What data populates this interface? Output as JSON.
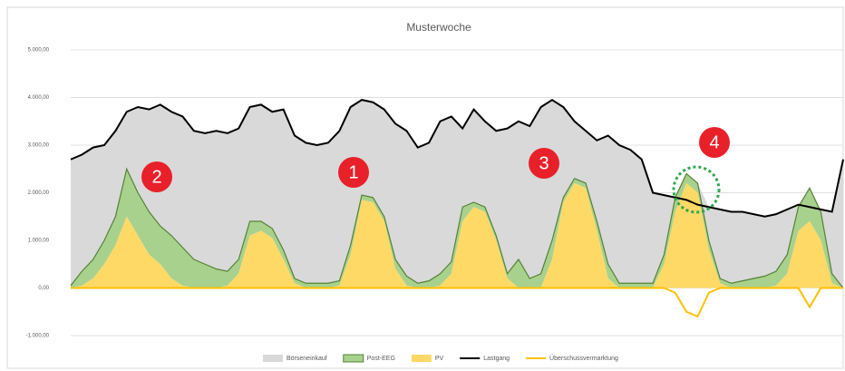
{
  "chart_data": {
    "type": "stacked-area-line",
    "title": "Musterwoche",
    "ylim": [
      -1000,
      5000
    ],
    "yticks": [
      {
        "value": -1000,
        "label": "-1.000,00"
      },
      {
        "value": 0,
        "label": "0,00"
      },
      {
        "value": 1000,
        "label": "1.000,00"
      },
      {
        "value": 2000,
        "label": "2.000,00"
      },
      {
        "value": 3000,
        "label": "3.000,00"
      },
      {
        "value": 4000,
        "label": "4.000,00"
      },
      {
        "value": 5000,
        "label": "5.000,00"
      }
    ],
    "grid": true,
    "legend": "bottom",
    "series": [
      {
        "name": "Börseneinkauf",
        "kind": "area",
        "color": "#d9d9d9",
        "values": [
          2650,
          2450,
          2350,
          2000,
          1800,
          1200,
          1800,
          2150,
          2550,
          2600,
          2750,
          2700,
          2750,
          2900,
          2900,
          2750,
          2400,
          2450,
          2450,
          2950,
          3000,
          2950,
          2900,
          2950,
          3150,
          2900,
          2000,
          2000,
          2250,
          2850,
          3050,
          2850,
          2900,
          3200,
          3050,
          1650,
          1950,
          1800,
          2200,
          3050,
          2900,
          3200,
          3500,
          2950,
          1900,
          1200,
          1100,
          1700,
          2700,
          2900,
          2800,
          2600,
          1900,
          1250,
          0,
          0,
          0,
          700,
          1450,
          1500,
          1450,
          1350,
          1250,
          1200,
          950,
          50,
          0,
          50,
          1300,
          2700
        ]
      },
      {
        "name": "Post-EEG",
        "kind": "area",
        "color": "#a9d18e",
        "outline": "#548235",
        "values": [
          50,
          300,
          400,
          500,
          600,
          1000,
          900,
          900,
          800,
          900,
          800,
          600,
          500,
          400,
          300,
          300,
          300,
          200,
          200,
          200,
          100,
          100,
          100,
          100,
          100,
          200,
          100,
          100,
          100,
          200,
          200,
          100,
          150,
          250,
          250,
          300,
          100,
          100,
          100,
          100,
          600,
          200,
          300,
          400,
          100,
          100,
          100,
          200,
          300,
          100,
          100,
          100,
          100,
          200,
          300,
          200,
          200,
          200,
          100,
          100,
          150,
          200,
          250,
          300,
          400,
          500,
          700,
          600,
          200,
          0
        ]
      },
      {
        "name": "PV",
        "kind": "area",
        "color": "#ffd966",
        "values": [
          0,
          50,
          200,
          500,
          900,
          1500,
          1100,
          700,
          500,
          200,
          50,
          0,
          0,
          0,
          50,
          300,
          1100,
          1200,
          1050,
          600,
          100,
          0,
          0,
          0,
          50,
          700,
          1850,
          1800,
          1400,
          400,
          50,
          0,
          0,
          50,
          300,
          1400,
          1700,
          1600,
          1000,
          200,
          0,
          0,
          0,
          600,
          1800,
          2200,
          2100,
          1200,
          200,
          0,
          0,
          0,
          0,
          500,
          1600,
          2200,
          2000,
          800,
          100,
          0,
          0,
          0,
          0,
          50,
          300,
          1200,
          1400,
          1000,
          100,
          0
        ]
      },
      {
        "name": "Lastgang",
        "kind": "line",
        "color": "#000000",
        "values": [
          2700,
          2800,
          2950,
          3000,
          3300,
          3700,
          3800,
          3750,
          3850,
          3700,
          3600,
          3300,
          3250,
          3300,
          3250,
          3350,
          3800,
          3850,
          3700,
          3750,
          3200,
          3050,
          3000,
          3050,
          3300,
          3800,
          3950,
          3900,
          3750,
          3450,
          3300,
          2950,
          3050,
          3500,
          3600,
          3350,
          3750,
          3500,
          3300,
          3350,
          3500,
          3400,
          3800,
          3950,
          3800,
          3500,
          3300,
          3100,
          3200,
          3000,
          2900,
          2700,
          2000,
          1950,
          1900,
          1850,
          1750,
          1700,
          1650,
          1600,
          1600,
          1550,
          1500,
          1550,
          1650,
          1750,
          1700,
          1650,
          1600,
          2700
        ]
      },
      {
        "name": "Überschussvermarktung",
        "kind": "line",
        "color": "#ffc000",
        "values": [
          0,
          0,
          0,
          0,
          0,
          0,
          0,
          0,
          0,
          0,
          0,
          0,
          0,
          0,
          0,
          0,
          0,
          0,
          0,
          0,
          0,
          0,
          0,
          0,
          0,
          0,
          0,
          0,
          0,
          0,
          0,
          0,
          0,
          0,
          0,
          0,
          0,
          0,
          0,
          0,
          0,
          0,
          0,
          0,
          0,
          0,
          0,
          0,
          0,
          0,
          0,
          0,
          0,
          0,
          -100,
          -500,
          -600,
          -100,
          0,
          0,
          0,
          0,
          0,
          0,
          0,
          0,
          -400,
          0,
          0,
          0
        ]
      }
    ],
    "annotations": [
      {
        "text": "2"
      },
      {
        "text": "1"
      },
      {
        "text": "3"
      },
      {
        "text": "4"
      }
    ]
  }
}
